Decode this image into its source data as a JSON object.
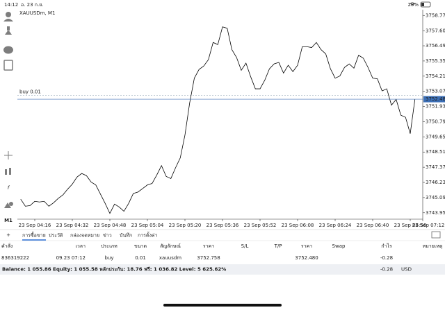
{
  "status_bar": {
    "time": "14:12",
    "date": "อ. 23 ก.ย.",
    "battery": "29%"
  },
  "chart_data": {
    "type": "line",
    "title": "XAUUSDm, M1",
    "color": "#000000",
    "categories": [
      null,
      null,
      null,
      "23 Sep 04:16",
      null,
      null,
      null,
      null,
      null,
      null,
      null,
      "23 Sep 04:32",
      null,
      null,
      null,
      null,
      null,
      null,
      null,
      "23 Sep 04:48",
      null,
      null,
      null,
      null,
      null,
      null,
      null,
      "23 Sep 05:04",
      null,
      null,
      null,
      null,
      null,
      null,
      null,
      "23 Sep 05:20",
      null,
      null,
      null,
      null,
      null,
      null,
      null,
      "23 Sep 05:36",
      null,
      null,
      null,
      null,
      null,
      null,
      null,
      "23 Sep 05:52",
      null,
      null,
      null,
      null,
      null,
      null,
      null,
      "23 Sep 06:08",
      null,
      null,
      null,
      null,
      null,
      null,
      null,
      "23 Sep 06:24",
      null,
      null,
      null,
      null,
      null,
      null,
      null,
      "23 Sep 06:40",
      null,
      null,
      null,
      null,
      null,
      null,
      null,
      "23 Sep 06:56",
      null,
      null,
      null,
      null,
      null,
      null,
      null,
      "23 Sep 07:12"
    ],
    "values": [
      3744.97,
      3744.44,
      3744.49,
      3744.81,
      3744.76,
      3744.81,
      3744.44,
      3744.7,
      3745.03,
      3745.29,
      3745.72,
      3746.1,
      3746.63,
      3746.9,
      3746.74,
      3746.26,
      3746.04,
      3745.35,
      3744.65,
      3743.9,
      3744.6,
      3744.38,
      3744.06,
      3744.65,
      3745.4,
      3745.51,
      3745.77,
      3746.04,
      3746.15,
      3746.79,
      3747.49,
      3746.68,
      3746.52,
      3747.33,
      3748.07,
      3749.79,
      3752.19,
      3754.06,
      3754.71,
      3754.97,
      3755.45,
      3756.74,
      3756.58,
      3757.91,
      3757.81,
      3756.2,
      3755.61,
      3754.65,
      3755.19,
      3754.17,
      3753.26,
      3753.26,
      3753.9,
      3754.76,
      3755.13,
      3755.24,
      3754.44,
      3755.03,
      3754.55,
      3755.03,
      3756.42,
      3756.42,
      3756.36,
      3756.74,
      3756.2,
      3755.88,
      3754.76,
      3754.06,
      3754.22,
      3754.87,
      3755.13,
      3754.81,
      3755.78,
      3755.56,
      3754.87,
      3754.06,
      3754.01,
      3753.1,
      3753.26,
      3752.03,
      3752.46,
      3751.28,
      3751.12,
      3749.89,
      3752.48,
      null,
      null,
      null,
      null,
      null,
      null,
      null
    ],
    "ylim": [
      3743.47,
      3759.2
    ],
    "yticks": [
      {
        "value": 3758.77,
        "label": "3758.770"
      },
      {
        "value": 3757.6,
        "label": "3757.600"
      },
      {
        "value": 3756.49,
        "label": "3756.490"
      },
      {
        "value": 3755.35,
        "label": "3755.350"
      },
      {
        "value": 3754.21,
        "label": "3754.210"
      },
      {
        "value": 3753.07,
        "label": "3753.070"
      },
      {
        "value": 3751.93,
        "label": "3751.930"
      },
      {
        "value": 3750.79,
        "label": "3750.790"
      },
      {
        "value": 3749.65,
        "label": "3749.650"
      },
      {
        "value": 3748.51,
        "label": "3748.510"
      },
      {
        "value": 3747.37,
        "label": "3747.370"
      },
      {
        "value": 3746.23,
        "label": "3746.230"
      },
      {
        "value": 3745.09,
        "label": "3745.090"
      },
      {
        "value": 3743.95,
        "label": "3743.950"
      }
    ],
    "price_tag": {
      "value": 3752.48,
      "label": "3752.480"
    },
    "buy_line": {
      "value": 3752.758,
      "label": "buy 0.01"
    }
  },
  "timeframe": "M1",
  "tabs": [
    "การซื้อขาย",
    "ประวัติ",
    "กล่องจดหมาย",
    "ข่าว",
    "บันทึก",
    "การตั้งค่า"
  ],
  "table": {
    "headers": [
      "คำสั่ง",
      "เวลา",
      "ประเภท",
      "ขนาด",
      "สัญลักษณ์",
      "ราคา",
      "S/L",
      "T/P",
      "ราคา",
      "Swap",
      "กำไร",
      "หมายเหตุ"
    ],
    "rows": [
      [
        "836319222",
        "09.23 07:12",
        "buy",
        "0.01",
        "xauusdm",
        "3752.758",
        null,
        null,
        "3752.480",
        null,
        "-0.28",
        null
      ]
    ]
  },
  "summary": {
    "text": "Balance: 1 055.86 Equity: 1 055.58 หลักประกัน: 18.76 ฟรี: 1 036.82 Level: 5 625.62%",
    "profit": "-0.28",
    "currency": "USD"
  }
}
